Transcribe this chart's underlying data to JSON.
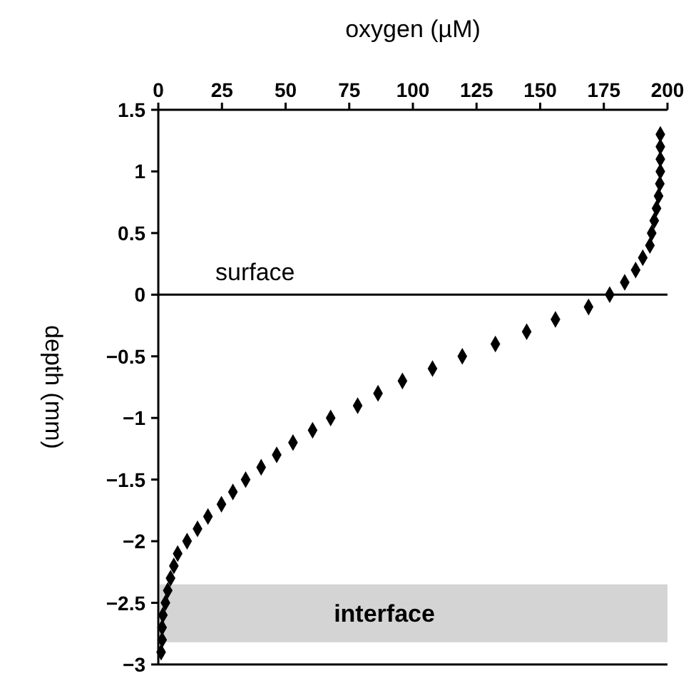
{
  "chart_data": {
    "type": "scatter",
    "xlabel": "oxygen (µM)",
    "ylabel": "depth (mm)",
    "xlim": [
      0,
      200
    ],
    "xticks": [
      0,
      25,
      50,
      75,
      100,
      125,
      150,
      175,
      200
    ],
    "ylim": [
      -3,
      1.5
    ],
    "yticks": [
      -3,
      -2.5,
      -2,
      -1.5,
      -1,
      -0.5,
      0,
      0.5,
      1,
      1.5
    ],
    "marker": "diamond",
    "series": [
      {
        "color": "#000000",
        "x": [
          197.2,
          197.2,
          197.2,
          197.2,
          197,
          196.5,
          195.7,
          194.8,
          193.8,
          193.1,
          190.3,
          187.5,
          183.2,
          177.3,
          169,
          156,
          144.7,
          132.4,
          119.4,
          107.7,
          95.9,
          86.3,
          78.3,
          67.7,
          60.6,
          52.9,
          46.5,
          40.4,
          34.3,
          29.3,
          24.8,
          19.5,
          15.4,
          11.3,
          7.6,
          6.1,
          4.8,
          3.7,
          2.8,
          1.8,
          1.5,
          1.5,
          1.1
        ],
        "values": [
          1.3,
          1.2,
          1.1,
          1.0,
          0.9,
          0.8,
          0.7,
          0.6,
          0.5,
          0.4,
          0.3,
          0.2,
          0.1,
          0,
          -0.1,
          -0.2,
          -0.3,
          -0.4,
          -0.5,
          -0.6,
          -0.7,
          -0.8,
          -0.9,
          -1.0,
          -1.1,
          -1.2,
          -1.3,
          -1.4,
          -1.5,
          -1.6,
          -1.7,
          -1.8,
          -1.9,
          -2.0,
          -2.1,
          -2.2,
          -2.3,
          -2.4,
          -2.5,
          -2.6,
          -2.7,
          -2.8,
          -2.9
        ]
      }
    ],
    "ref_lines": [
      {
        "axis": "y",
        "value": 0,
        "label": "surface",
        "color": "#000000"
      }
    ],
    "bands": [
      {
        "axis": "y",
        "from": -2.82,
        "to": -2.35,
        "label": "interface",
        "color": "#d4d4d4"
      }
    ]
  }
}
